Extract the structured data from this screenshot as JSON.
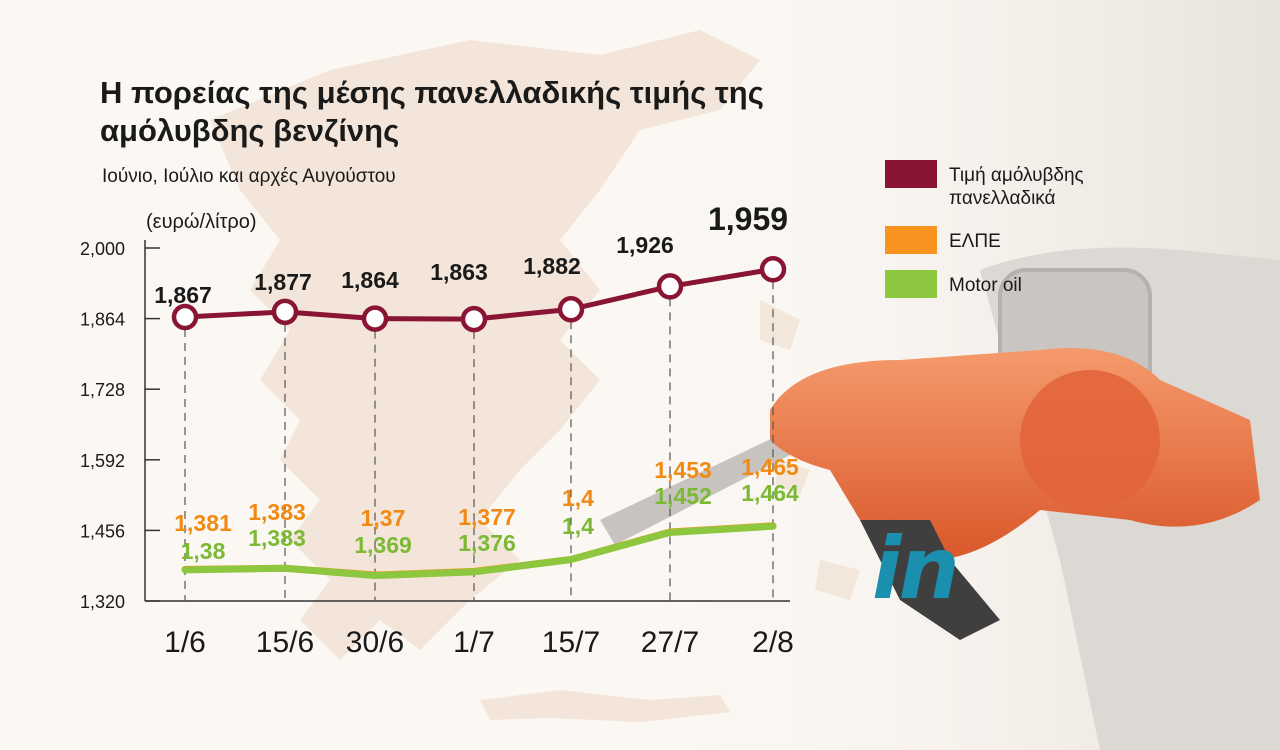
{
  "title": "Η πορείας της μέσης πανελλαδικής τιμής της αμόλυβδης βενζίνης",
  "subtitle": "Ιούνιο, Ιούλιο και αρχές Αυγούστου",
  "logo": "in",
  "colors": {
    "price": "#8a1433",
    "elpe": "#f7931e",
    "motor_oil": "#8dc63f",
    "elpe_label": "#f08a14",
    "motor_oil_label": "#7cb934"
  },
  "legend": [
    {
      "label": "Τιμή αμόλυβδης πανελλαδικά",
      "color": "#8a1433"
    },
    {
      "label": "ΕΛΠΕ",
      "color": "#f7931e"
    },
    {
      "label": "Motor oil",
      "color": "#8dc63f"
    }
  ],
  "chart_data": {
    "type": "line",
    "title": "Η πορείας της μέσης πανελλαδικής τιμής της αμόλυβδης βενζίνης",
    "subtitle": "Ιούνιο, Ιούλιο και αρχές Αυγούστου",
    "ylabel": "(ευρώ/λίτρο)",
    "xlabel": "",
    "categories": [
      "1/6",
      "15/6",
      "30/6",
      "1/7",
      "15/7",
      "27/7",
      "2/8"
    ],
    "yticks": [
      "2,000",
      "1,864",
      "1,728",
      "1,592",
      "1,456",
      "1,320"
    ],
    "ylim": [
      1.32,
      2.0
    ],
    "grid": "vertical dashed lines at each date",
    "legend_position": "right",
    "series": [
      {
        "name": "Τιμή αμόλυβδης πανελλαδικά",
        "values": [
          1.867,
          1.877,
          1.864,
          1.863,
          1.882,
          1.926,
          1.959
        ],
        "labels": [
          "1,867",
          "1,877",
          "1,864",
          "1,863",
          "1,882",
          "1,926",
          "1,959"
        ],
        "color": "#8a1433"
      },
      {
        "name": "ΕΛΠΕ",
        "values": [
          1.381,
          1.383,
          1.37,
          1.377,
          1.4,
          1.453,
          1.465
        ],
        "labels": [
          "1,381",
          "1,383",
          "1,37",
          "1,377",
          "1,4",
          "1,453",
          "1,465"
        ],
        "color": "#f7931e"
      },
      {
        "name": "Motor oil",
        "values": [
          1.38,
          1.383,
          1.369,
          1.376,
          1.4,
          1.452,
          1.464
        ],
        "labels": [
          "1,38",
          "1,383",
          "1,369",
          "1,376",
          "1,4",
          "1,452",
          "1,464"
        ],
        "color": "#8dc63f"
      }
    ]
  }
}
